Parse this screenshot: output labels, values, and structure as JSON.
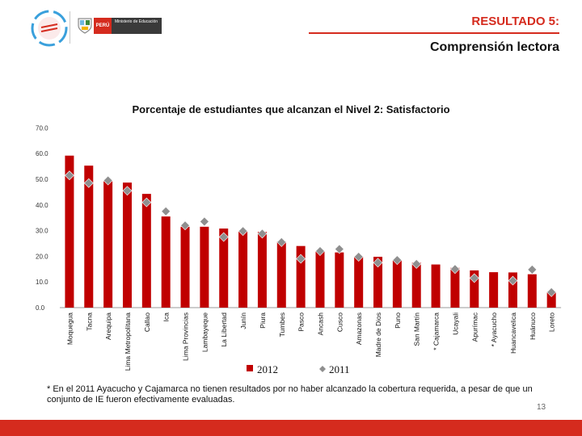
{
  "header": {
    "ministry_text": "Ministerio de Educación",
    "peru_text": "PERÚ",
    "result_title": "RESULTADO 5:",
    "subtitle": "Comprensión lectora"
  },
  "colors": {
    "accent": "#d52b1e",
    "bar_2012": "#c00000",
    "marker_2011": "#8f8f8f"
  },
  "chart_data": {
    "type": "bar",
    "title": "Porcentaje de estudiantes que alcanzan el Nivel 2: Satisfactorio",
    "ylim": [
      0,
      70
    ],
    "yticks": [
      "0.0",
      "10.0",
      "20.0",
      "30.0",
      "40.0",
      "50.0",
      "60.0",
      "70.0"
    ],
    "grid": false,
    "legend_position": "bottom",
    "categories": [
      "Moquegua",
      "Tacna",
      "Arequipa",
      "Lima Metropolitana",
      "Callao",
      "Ica",
      "Lima Provincias",
      "Lambayeque",
      "La Libertad",
      "Junín",
      "Piura",
      "Tumbes",
      "Pasco",
      "Ancash",
      "Cusco",
      "Amazonas",
      "Madre de Dios",
      "Puno",
      "San Martín",
      "* Cajamarca",
      "Ucayali",
      "Apurímac",
      "* Ayacucho",
      "Huancavelica",
      "Huánuco",
      "Loreto"
    ],
    "series": [
      {
        "name": "2012",
        "kind": "bar",
        "values": [
          59.2,
          55.3,
          49.2,
          48.7,
          44.3,
          35.5,
          31.5,
          31.5,
          30.8,
          30.0,
          29.5,
          25.8,
          24.0,
          22.0,
          21.5,
          20.0,
          19.8,
          18.5,
          17.5,
          16.8,
          15.5,
          14.5,
          13.8,
          13.7,
          13.0,
          6.2
        ]
      },
      {
        "name": "2011",
        "kind": "marker",
        "values": [
          51.5,
          48.5,
          49.5,
          45.5,
          41.0,
          37.5,
          32.0,
          33.5,
          27.5,
          29.8,
          28.8,
          25.5,
          19.0,
          22.0,
          22.8,
          19.8,
          17.5,
          18.5,
          17.0,
          null,
          15.0,
          11.5,
          null,
          10.5,
          14.8,
          6.0
        ]
      }
    ]
  },
  "footnote": "* En el 2011 Ayacucho y Cajamarca no tienen resultados por no haber alcanzado la cobertura requerida, a pesar de que un conjunto de IE fueron efectivamente evaluadas.",
  "page_number": "13"
}
